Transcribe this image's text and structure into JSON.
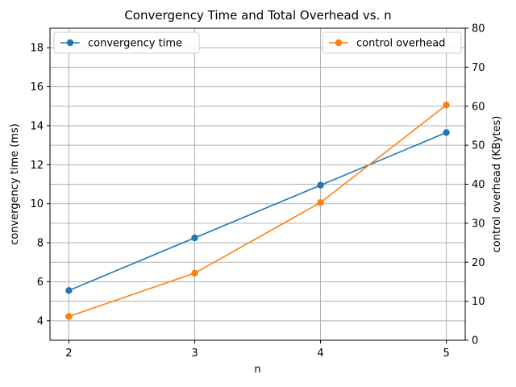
{
  "chart_data": {
    "type": "line",
    "title": "Convergency Time and Total Overhead vs. n",
    "xlabel": "n",
    "ylabel_left": "convergency time (ms)",
    "ylabel_right": "control overhead (KBytes)",
    "x": [
      2,
      3,
      4,
      5
    ],
    "xlim": [
      1.85,
      5.15
    ],
    "ylim_left": [
      3,
      19
    ],
    "ylim_right": [
      0,
      80
    ],
    "left_ticks": [
      4,
      6,
      8,
      10,
      12,
      14,
      16,
      18
    ],
    "right_ticks": [
      0,
      10,
      20,
      30,
      40,
      50,
      60,
      70,
      80
    ],
    "grid": true,
    "series": [
      {
        "name": "convergency time",
        "axis": "left",
        "color": "#1f77b4",
        "values": [
          5.55,
          8.25,
          10.95,
          13.65
        ],
        "legend_position": "upper-left"
      },
      {
        "name": "control overhead",
        "axis": "right",
        "color": "#ff7f0e",
        "values": [
          6.1,
          17.2,
          35.3,
          60.3
        ],
        "legend_position": "upper-right"
      }
    ]
  }
}
